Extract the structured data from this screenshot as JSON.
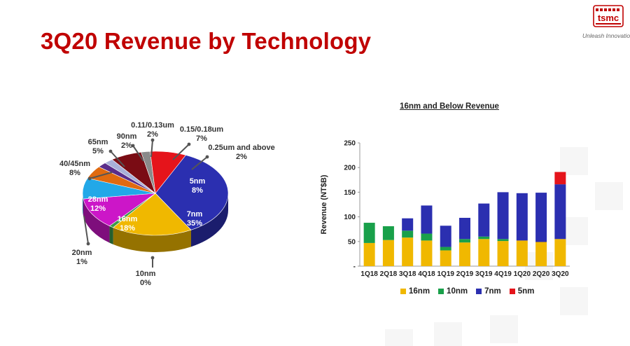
{
  "header": {
    "title": "3Q20 Revenue by Technology",
    "logo_text": "tsmc",
    "tagline": "Unleash Innovation"
  },
  "colors": {
    "title": "#c00000",
    "n16": "#f0b800",
    "n10": "#19a04a",
    "n7": "#2b2fb0",
    "n5": "#e5141b"
  },
  "chart_data": [
    {
      "type": "pie",
      "title": "",
      "slices": [
        {
          "label": "7nm",
          "value": 35,
          "display": "35%",
          "color": "#2b2fb0"
        },
        {
          "label": "10nm",
          "value": 0,
          "display": "0%",
          "color": "#2e8b3c"
        },
        {
          "label": "16nm",
          "value": 18,
          "display": "18%",
          "color": "#f0b800"
        },
        {
          "label": "20nm",
          "value": 1,
          "display": "1%",
          "color": "#3c9a4a"
        },
        {
          "label": "28nm",
          "value": 12,
          "display": "12%",
          "color": "#cc16c8"
        },
        {
          "label": "40/45nm",
          "value": 8,
          "display": "8%",
          "color": "#22a8e8"
        },
        {
          "label": "65nm",
          "value": 5,
          "display": "5%",
          "color": "#e06a10"
        },
        {
          "label": "90nm",
          "value": 2,
          "display": "2%",
          "color": "#5a2d8a"
        },
        {
          "label": "0.11/0.13um",
          "value": 2,
          "display": "2%",
          "color": "#a8b0d8"
        },
        {
          "label": "0.15/0.18um",
          "value": 7,
          "display": "7%",
          "color": "#7a0c14"
        },
        {
          "label": "0.25um and above",
          "value": 2,
          "display": "2%",
          "color": "#8a8a8a"
        },
        {
          "label": "5nm",
          "value": 8,
          "display": "8%",
          "color": "#e5141b"
        }
      ]
    },
    {
      "type": "bar",
      "stacked": true,
      "title": "16nm and Below Revenue",
      "ylabel": "Revenue (NT$B)",
      "xlabel": "",
      "ylim": [
        0,
        250
      ],
      "yticks": [
        "-",
        "50",
        "100",
        "150",
        "200",
        "250"
      ],
      "categories": [
        "1Q18",
        "2Q18",
        "3Q18",
        "4Q18",
        "1Q19",
        "2Q19",
        "3Q19",
        "4Q19",
        "1Q20",
        "2Q20",
        "3Q20"
      ],
      "series": [
        {
          "name": "16nm",
          "color": "#f0b800",
          "values": [
            47,
            53,
            58,
            52,
            32,
            48,
            55,
            51,
            52,
            49,
            55
          ]
        },
        {
          "name": "10nm",
          "color": "#19a04a",
          "values": [
            41,
            28,
            14,
            14,
            7,
            7,
            5,
            4,
            0,
            0,
            0
          ]
        },
        {
          "name": "7nm",
          "color": "#2b2fb0",
          "values": [
            0,
            0,
            25,
            57,
            43,
            43,
            67,
            95,
            96,
            100,
            111
          ]
        },
        {
          "name": "5nm",
          "color": "#e5141b",
          "values": [
            0,
            0,
            0,
            0,
            0,
            0,
            0,
            0,
            0,
            0,
            25
          ]
        }
      ],
      "legend_position": "bottom"
    }
  ]
}
